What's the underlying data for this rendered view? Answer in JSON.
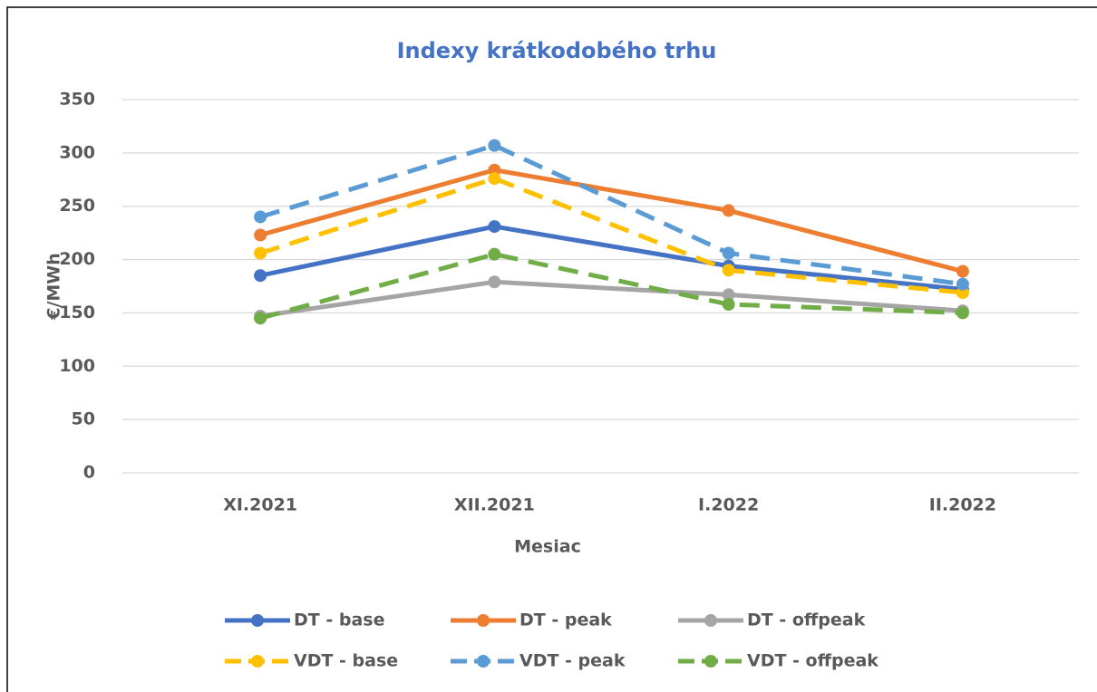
{
  "chart_data": {
    "type": "line",
    "title": "Indexy krátkodobého trhu",
    "xlabel": "Mesiac",
    "ylabel": "€/MWh",
    "categories": [
      "XI.2021",
      "XII.2021",
      "I.2022",
      "II.2022"
    ],
    "ylim": [
      0,
      350
    ],
    "yticks": [
      0,
      50,
      100,
      150,
      200,
      250,
      300,
      350
    ],
    "grid": true,
    "legend": "bottom",
    "series": [
      {
        "name": "DT - base",
        "color": "#4472c4",
        "dashed": false,
        "values": [
          185,
          231,
          194,
          172
        ]
      },
      {
        "name": "DT - peak",
        "color": "#ed7d31",
        "dashed": false,
        "values": [
          223,
          284,
          246,
          189
        ]
      },
      {
        "name": "DT - offpeak",
        "color": "#a5a5a5",
        "dashed": false,
        "values": [
          147,
          179,
          167,
          152
        ]
      },
      {
        "name": "VDT - base",
        "color": "#ffc000",
        "dashed": true,
        "values": [
          206,
          276,
          190,
          169
        ]
      },
      {
        "name": "VDT - peak",
        "color": "#5b9bd5",
        "dashed": true,
        "values": [
          240,
          307,
          206,
          177
        ]
      },
      {
        "name": "VDT - offpeak",
        "color": "#70ad47",
        "dashed": true,
        "values": [
          145,
          205,
          158,
          150
        ]
      }
    ]
  }
}
